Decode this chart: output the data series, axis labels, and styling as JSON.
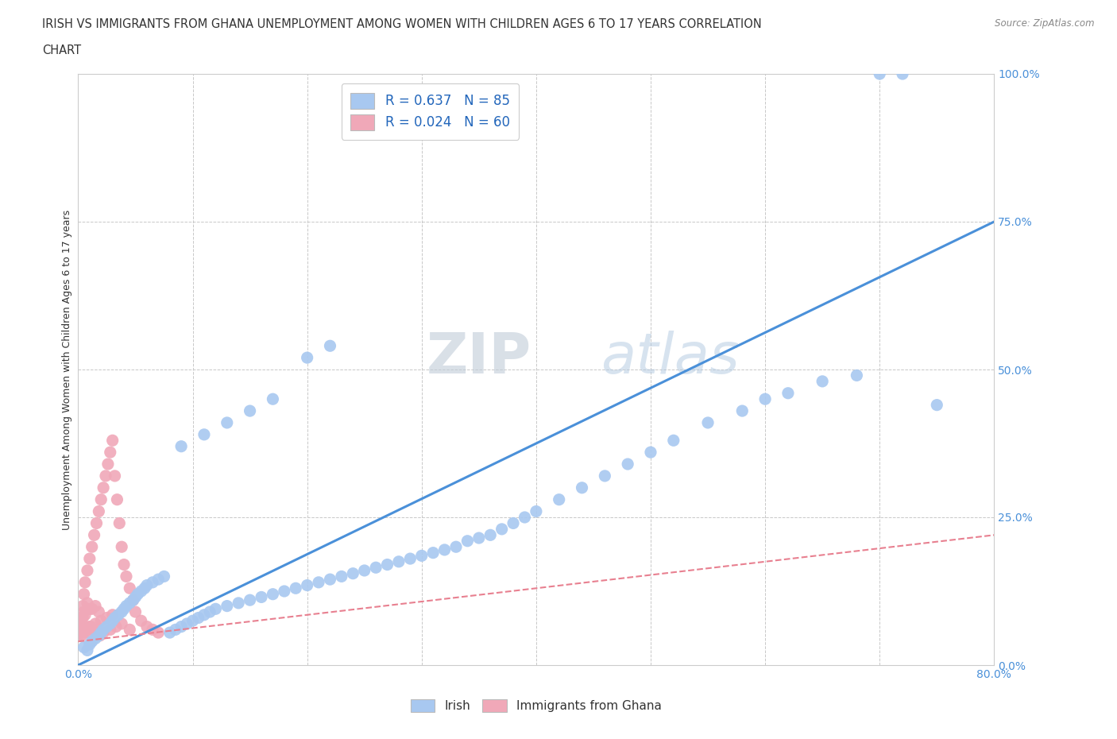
{
  "title_line1": "IRISH VS IMMIGRANTS FROM GHANA UNEMPLOYMENT AMONG WOMEN WITH CHILDREN AGES 6 TO 17 YEARS CORRELATION",
  "title_line2": "CHART",
  "source": "Source: ZipAtlas.com",
  "ylabel": "Unemployment Among Women with Children Ages 6 to 17 years",
  "xlim": [
    0.0,
    0.8
  ],
  "ylim": [
    0.0,
    1.0
  ],
  "xticks": [
    0.0,
    0.1,
    0.2,
    0.3,
    0.4,
    0.5,
    0.6,
    0.7,
    0.8
  ],
  "yticks": [
    0.0,
    0.25,
    0.5,
    0.75,
    1.0
  ],
  "irish_color": "#a8c8f0",
  "ghana_color": "#f0a8b8",
  "irish_line_color": "#4a90d9",
  "ghana_line_color": "#e88090",
  "watermark_zip": "ZIP",
  "watermark_atlas": "atlas",
  "background_color": "#ffffff",
  "grid_color": "#c8c8c8",
  "irish_line_x": [
    0.0,
    0.8
  ],
  "irish_line_y": [
    0.0,
    0.75
  ],
  "ghana_line_x": [
    0.0,
    0.8
  ],
  "ghana_line_y": [
    0.04,
    0.22
  ],
  "irish_scatter_x": [
    0.005,
    0.008,
    0.01,
    0.012,
    0.015,
    0.018,
    0.02,
    0.022,
    0.025,
    0.028,
    0.03,
    0.032,
    0.035,
    0.038,
    0.04,
    0.042,
    0.045,
    0.048,
    0.05,
    0.052,
    0.055,
    0.058,
    0.06,
    0.065,
    0.07,
    0.075,
    0.08,
    0.085,
    0.09,
    0.095,
    0.1,
    0.105,
    0.11,
    0.115,
    0.12,
    0.13,
    0.14,
    0.15,
    0.16,
    0.17,
    0.18,
    0.19,
    0.2,
    0.21,
    0.22,
    0.23,
    0.24,
    0.25,
    0.26,
    0.27,
    0.28,
    0.29,
    0.3,
    0.31,
    0.32,
    0.33,
    0.34,
    0.35,
    0.36,
    0.37,
    0.38,
    0.39,
    0.4,
    0.42,
    0.44,
    0.46,
    0.48,
    0.5,
    0.52,
    0.55,
    0.58,
    0.6,
    0.62,
    0.65,
    0.68,
    0.7,
    0.72,
    0.75,
    0.09,
    0.11,
    0.13,
    0.15,
    0.17,
    0.2,
    0.22
  ],
  "irish_scatter_y": [
    0.03,
    0.025,
    0.035,
    0.04,
    0.045,
    0.05,
    0.055,
    0.06,
    0.065,
    0.07,
    0.075,
    0.08,
    0.085,
    0.09,
    0.095,
    0.1,
    0.105,
    0.11,
    0.115,
    0.12,
    0.125,
    0.13,
    0.135,
    0.14,
    0.145,
    0.15,
    0.055,
    0.06,
    0.065,
    0.07,
    0.075,
    0.08,
    0.085,
    0.09,
    0.095,
    0.1,
    0.105,
    0.11,
    0.115,
    0.12,
    0.125,
    0.13,
    0.135,
    0.14,
    0.145,
    0.15,
    0.155,
    0.16,
    0.165,
    0.17,
    0.175,
    0.18,
    0.185,
    0.19,
    0.195,
    0.2,
    0.21,
    0.215,
    0.22,
    0.23,
    0.24,
    0.25,
    0.26,
    0.28,
    0.3,
    0.32,
    0.34,
    0.36,
    0.38,
    0.41,
    0.43,
    0.45,
    0.46,
    0.48,
    0.49,
    1.0,
    1.0,
    0.44,
    0.37,
    0.39,
    0.41,
    0.43,
    0.45,
    0.52,
    0.54
  ],
  "ghana_scatter_x": [
    0.0,
    0.002,
    0.004,
    0.005,
    0.006,
    0.008,
    0.01,
    0.012,
    0.014,
    0.016,
    0.018,
    0.02,
    0.022,
    0.024,
    0.026,
    0.028,
    0.03,
    0.032,
    0.034,
    0.036,
    0.038,
    0.04,
    0.042,
    0.045,
    0.048,
    0.05,
    0.055,
    0.06,
    0.065,
    0.07,
    0.003,
    0.005,
    0.008,
    0.01,
    0.015,
    0.02,
    0.025,
    0.03,
    0.005,
    0.01,
    0.015,
    0.008,
    0.012,
    0.018,
    0.006,
    0.004,
    0.002,
    0.001,
    0.003,
    0.007,
    0.009,
    0.011,
    0.013,
    0.016,
    0.019,
    0.022,
    0.028,
    0.033,
    0.038,
    0.045
  ],
  "ghana_scatter_y": [
    0.05,
    0.08,
    0.1,
    0.12,
    0.14,
    0.16,
    0.18,
    0.2,
    0.22,
    0.24,
    0.26,
    0.28,
    0.3,
    0.32,
    0.34,
    0.36,
    0.38,
    0.32,
    0.28,
    0.24,
    0.2,
    0.17,
    0.15,
    0.13,
    0.11,
    0.09,
    0.075,
    0.065,
    0.06,
    0.055,
    0.05,
    0.055,
    0.06,
    0.065,
    0.07,
    0.075,
    0.08,
    0.085,
    0.09,
    0.095,
    0.1,
    0.105,
    0.095,
    0.09,
    0.085,
    0.08,
    0.075,
    0.065,
    0.07,
    0.06,
    0.055,
    0.065,
    0.06,
    0.055,
    0.05,
    0.055,
    0.06,
    0.065,
    0.07,
    0.06
  ]
}
